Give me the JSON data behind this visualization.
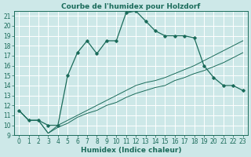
{
  "title": "Courbe de l'humidex pour Holzdorf",
  "xlabel": "Humidex (Indice chaleur)",
  "bg_color": "#cde8e8",
  "grid_color": "#ffffff",
  "line_color": "#1a6b5a",
  "xlim": [
    -0.5,
    23.5
  ],
  "ylim": [
    9,
    21.5
  ],
  "xticks": [
    0,
    1,
    2,
    3,
    4,
    5,
    6,
    7,
    8,
    9,
    10,
    11,
    12,
    13,
    14,
    15,
    16,
    17,
    18,
    19,
    20,
    21,
    22,
    23
  ],
  "yticks": [
    9,
    10,
    11,
    12,
    13,
    14,
    15,
    16,
    17,
    18,
    19,
    20,
    21
  ],
  "curve1_x": [
    0,
    1,
    2,
    3,
    4,
    5,
    6,
    7,
    8,
    9,
    10,
    11,
    12,
    13,
    14,
    15,
    16,
    17,
    18,
    19,
    20,
    21,
    22,
    23
  ],
  "curve1_y": [
    11.5,
    10.5,
    10.5,
    10.0,
    10.0,
    15.0,
    17.3,
    18.5,
    17.2,
    18.5,
    18.5,
    21.3,
    21.5,
    20.5,
    19.5,
    19.0,
    19.0,
    19.0,
    18.8,
    16.0,
    14.8,
    14.0,
    14.0,
    13.5
  ],
  "curve2_x": [
    0,
    1,
    2,
    3,
    4,
    5,
    6,
    7,
    8,
    9,
    10,
    11,
    12,
    13,
    14,
    15,
    16,
    17,
    18,
    19,
    20,
    21,
    22,
    23
  ],
  "curve2_y": [
    11.5,
    10.5,
    10.5,
    9.2,
    10.0,
    10.5,
    11.0,
    11.5,
    12.0,
    12.5,
    13.0,
    13.5,
    14.0,
    14.3,
    14.5,
    14.8,
    15.2,
    15.6,
    16.0,
    16.5,
    17.0,
    17.5,
    18.0,
    18.5
  ],
  "curve3_x": [
    0,
    1,
    2,
    3,
    4,
    5,
    6,
    7,
    8,
    9,
    10,
    11,
    12,
    13,
    14,
    15,
    16,
    17,
    18,
    19,
    20,
    21,
    22,
    23
  ],
  "curve3_y": [
    11.5,
    10.5,
    10.5,
    9.2,
    9.8,
    10.2,
    10.8,
    11.2,
    11.5,
    12.0,
    12.3,
    12.8,
    13.2,
    13.5,
    13.8,
    14.0,
    14.5,
    14.8,
    15.2,
    15.5,
    15.9,
    16.3,
    16.8,
    17.3
  ],
  "title_fontsize": 6.5,
  "label_fontsize": 6.5,
  "tick_fontsize": 5.5
}
